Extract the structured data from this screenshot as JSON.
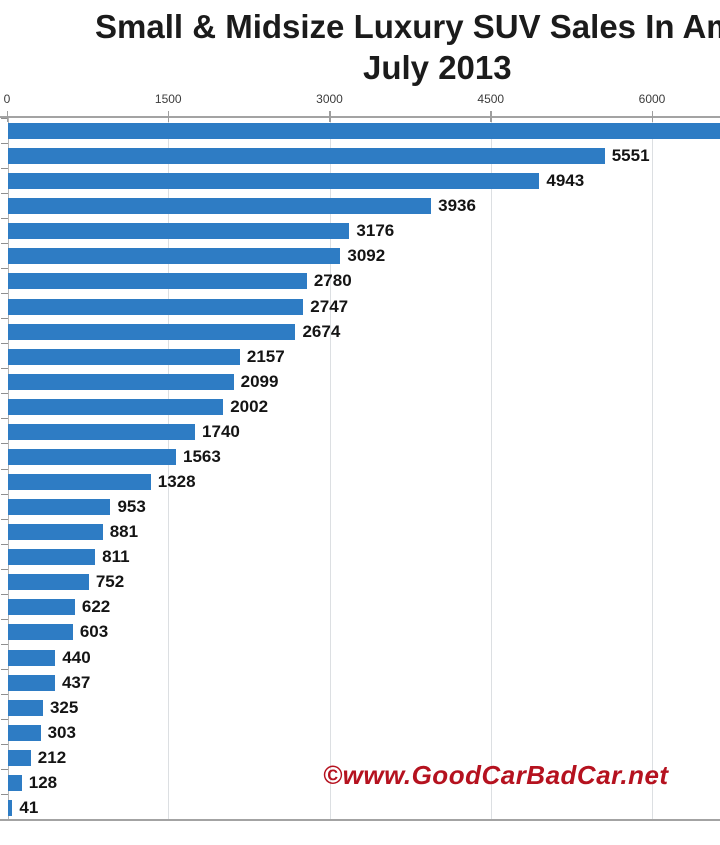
{
  "title": {
    "line1": "Small & Midsize Luxury SUV Sales In America",
    "line2": "July 2013"
  },
  "watermark": "©www.GoodCarBadCar.net",
  "colors": {
    "bar": "#2E7CC4",
    "watermark_red": "#b5121f",
    "gridline": "#dcdfe2",
    "axis": "#a3a3a3",
    "title_text": "#1b1b1b"
  },
  "chart_data": {
    "type": "bar",
    "orientation": "horizontal",
    "title": "Small & Midsize Luxury SUV Sales In America",
    "subtitle": "July 2013",
    "xlabel": "",
    "ylabel": "",
    "xlim": [
      0,
      6650
    ],
    "x_tick_values": [
      0,
      1500,
      3000,
      4500,
      6000
    ],
    "x_tick_labels": [
      "0",
      "1500",
      "3000",
      "4500",
      "6000"
    ],
    "grid": true,
    "legend": false,
    "category_labels_visible": false,
    "first_bar_clipped_at_right_edge": true,
    "values": [
      null,
      5551,
      4943,
      3936,
      3176,
      3092,
      2780,
      2747,
      2674,
      2157,
      2099,
      2002,
      1740,
      1563,
      1328,
      953,
      881,
      811,
      752,
      622,
      603,
      440,
      437,
      325,
      303,
      212,
      128,
      41
    ],
    "value_labels": [
      "",
      "5551",
      "4943",
      "3936",
      "3176",
      "3092",
      "2780",
      "2747",
      "2674",
      "2157",
      "2099",
      "2002",
      "1740",
      "1563",
      "1328",
      "953",
      "881",
      "811",
      "752",
      "622",
      "603",
      "440",
      "437",
      "325",
      "303",
      "212",
      "128",
      "41"
    ]
  }
}
